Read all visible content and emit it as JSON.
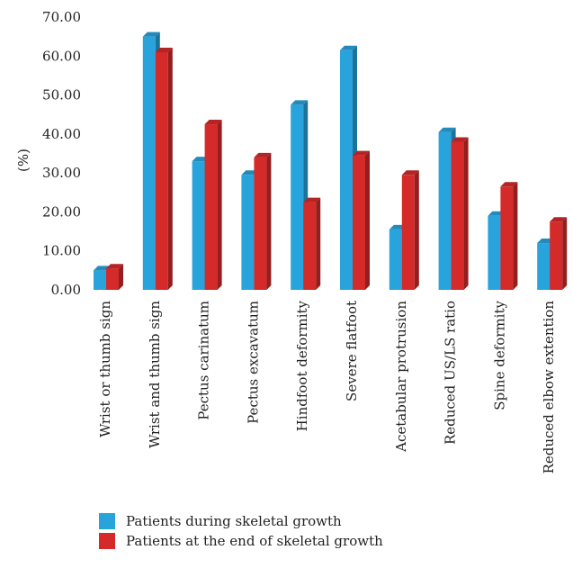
{
  "chart_data": {
    "type": "bar",
    "title": "",
    "xlabel": "",
    "ylabel": "(%)",
    "ylim": [
      0,
      70
    ],
    "yticks": [
      "0.00",
      "10.00",
      "20.00",
      "30.00",
      "40.00",
      "50.00",
      "60.00",
      "70.00"
    ],
    "categories": [
      "Wrist or thumb sign",
      "Wrist and thumb sign",
      "Pectus carinatum",
      "Pectus excavatum",
      "Hindfoot deformity",
      "Severe flatfoot",
      "Acetabular protrusion",
      "Reduced US/LS ratio",
      "Spine deformity",
      "Reduced elbow extention"
    ],
    "series": [
      {
        "name": "Patients during skeletal growth",
        "color": "#29a3dc",
        "values": [
          5.0,
          65.0,
          33.0,
          29.5,
          47.5,
          61.5,
          15.5,
          40.5,
          19.0,
          12.0
        ]
      },
      {
        "name": "Patients at the end of skeletal growth",
        "color": "#d42a2a",
        "values": [
          5.5,
          61.0,
          42.5,
          34.0,
          22.5,
          34.5,
          29.5,
          38.0,
          26.5,
          17.5
        ]
      }
    ],
    "legend_position": "bottom-left",
    "grid": false
  }
}
